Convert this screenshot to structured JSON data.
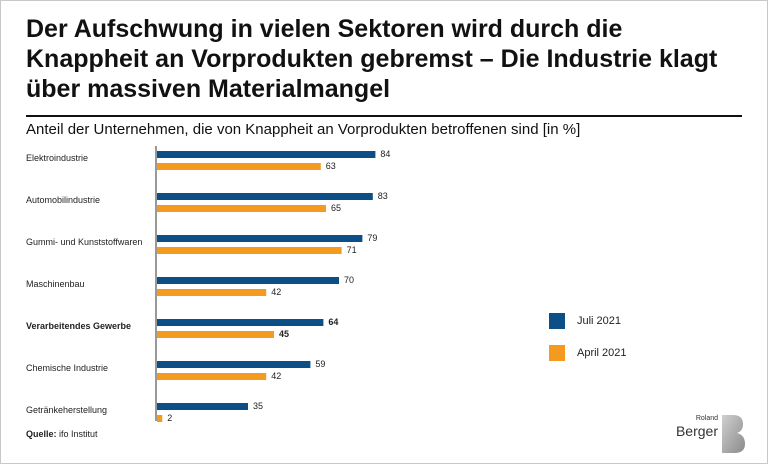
{
  "title": "Der Aufschwung in vielen Sektoren wird durch die Knappheit an Vorprodukten gebremst – Die Industrie klagt über massiven Materialmangel",
  "subtitle": "Anteil der Unternehmen, die von Knappheit an Vorprodukten betroffenen sind [in %]",
  "colors": {
    "juli": "#0b4f86",
    "april": "#f39a1f"
  },
  "chart_data": {
    "type": "bar",
    "orientation": "horizontal",
    "categories": [
      "Elektroindustrie",
      "Automobilindustrie",
      "Gummi- und Kunststoffwaren",
      "Maschinenbau",
      "Verarbeitendes Gewerbe",
      "Chemische Industrie",
      "Getränkeherstellung"
    ],
    "highlight_category": "Verarbeitendes Gewerbe",
    "series": [
      {
        "name": "Juli 2021",
        "values": [
          84,
          83,
          79,
          70,
          64,
          59,
          35
        ]
      },
      {
        "name": "April 2021",
        "values": [
          63,
          65,
          71,
          42,
          45,
          42,
          2
        ]
      }
    ],
    "xlim": [
      0,
      100
    ],
    "unit": "%"
  },
  "legend": {
    "juli": "Juli 2021",
    "april": "April 2021"
  },
  "source": {
    "label": "Quelle:",
    "text": "ifo Institut"
  },
  "logo": {
    "small": "Roland",
    "main": "Berger"
  }
}
